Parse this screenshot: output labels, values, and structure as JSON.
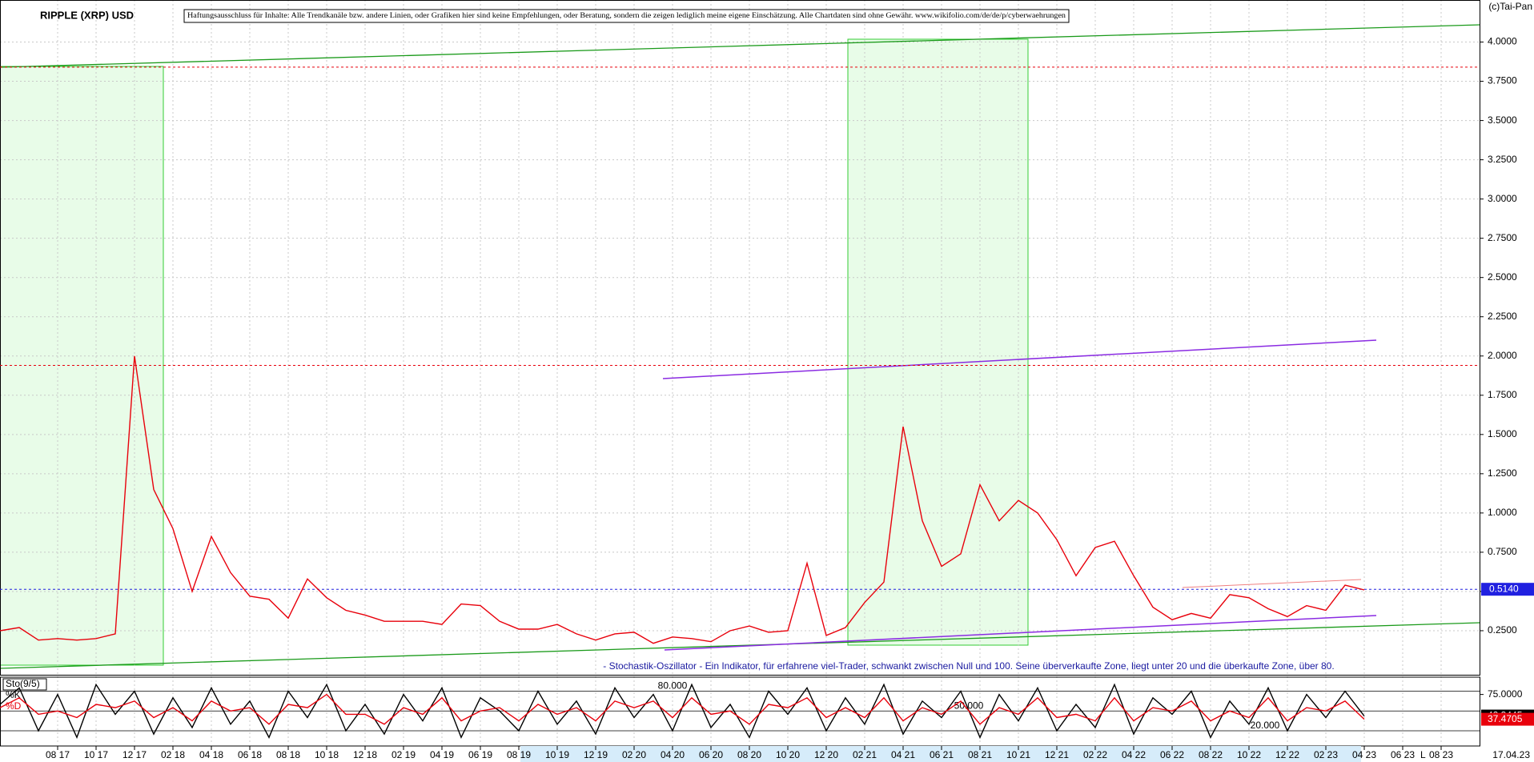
{
  "chart_data": [
    {
      "type": "line",
      "title": "RIPPLE (XRP) USD",
      "copyright": "(c)Tai-Pan",
      "disclaimer": "Haftungsausschluss für Inhalte: Alle Trendkanäle bzw. andere Linien, oder Grafiken hier sind keine Empfehlungen, oder Beratung, sondern die zeigen lediglich meine eigene Einschätzung. Alle Chartdaten sind ohne Gewähr. www.wikifolio.com/de/de/p/cyberwaehrungen",
      "caption": "- Stochastik-Oszillator - Ein Indikator, für erfahrene viel-Trader, schwankt zwischen Null und 100. Seine überverkaufte Zone, liegt unter 20 und die überkaufte Zone, über 80.",
      "last_date": "17.04.23",
      "axis_marker": "L",
      "x": [
        "2017-05",
        "2017-06",
        "2017-07",
        "2017-08",
        "2017-09",
        "2017-10",
        "2017-11",
        "2017-12",
        "2018-01",
        "2018-02",
        "2018-03",
        "2018-04",
        "2018-05",
        "2018-06",
        "2018-07",
        "2018-08",
        "2018-09",
        "2018-10",
        "2018-11",
        "2018-12",
        "2019-01",
        "2019-02",
        "2019-03",
        "2019-04",
        "2019-05",
        "2019-06",
        "2019-07",
        "2019-08",
        "2019-09",
        "2019-10",
        "2019-11",
        "2019-12",
        "2020-01",
        "2020-02",
        "2020-03",
        "2020-04",
        "2020-05",
        "2020-06",
        "2020-07",
        "2020-08",
        "2020-09",
        "2020-10",
        "2020-11",
        "2020-12",
        "2021-01",
        "2021-02",
        "2021-03",
        "2021-04",
        "2021-05",
        "2021-06",
        "2021-07",
        "2021-08",
        "2021-09",
        "2021-10",
        "2021-11",
        "2021-12",
        "2022-01",
        "2022-02",
        "2022-03",
        "2022-04",
        "2022-05",
        "2022-06",
        "2022-07",
        "2022-08",
        "2022-09",
        "2022-10",
        "2022-11",
        "2022-12",
        "2023-01",
        "2023-02",
        "2023-03",
        "2023-04"
      ],
      "series": [
        {
          "color": "#e8000b",
          "values": [
            0.25,
            0.27,
            0.19,
            0.2,
            0.19,
            0.2,
            0.23,
            2.0,
            1.15,
            0.9,
            0.5,
            0.85,
            0.62,
            0.47,
            0.45,
            0.33,
            0.58,
            0.46,
            0.38,
            0.35,
            0.31,
            0.31,
            0.31,
            0.29,
            0.42,
            0.41,
            0.31,
            0.26,
            0.26,
            0.29,
            0.23,
            0.19,
            0.23,
            0.24,
            0.17,
            0.21,
            0.2,
            0.18,
            0.25,
            0.28,
            0.24,
            0.25,
            0.68,
            0.22,
            0.27,
            0.43,
            0.56,
            1.55,
            0.95,
            0.66,
            0.74,
            1.18,
            0.95,
            1.08,
            1.0,
            0.83,
            0.6,
            0.78,
            0.82,
            0.6,
            0.4,
            0.32,
            0.36,
            0.33,
            0.48,
            0.46,
            0.39,
            0.34,
            0.41,
            0.38,
            0.54,
            0.51
          ]
        }
      ],
      "xlim": [
        "2017-05",
        "2023-10"
      ],
      "xticks": [
        {
          "value": "2017-08",
          "label": "08 17"
        },
        {
          "value": "2017-10",
          "label": "10 17"
        },
        {
          "value": "2017-12",
          "label": "12 17"
        },
        {
          "value": "2018-02",
          "label": "02 18"
        },
        {
          "value": "2018-04",
          "label": "04 18"
        },
        {
          "value": "2018-06",
          "label": "06 18"
        },
        {
          "value": "2018-08",
          "label": "08 18"
        },
        {
          "value": "2018-10",
          "label": "10 18"
        },
        {
          "value": "2018-12",
          "label": "12 18"
        },
        {
          "value": "2019-02",
          "label": "02 19"
        },
        {
          "value": "2019-04",
          "label": "04 19"
        },
        {
          "value": "2019-06",
          "label": "06 19"
        },
        {
          "value": "2019-08",
          "label": "08 19"
        },
        {
          "value": "2019-10",
          "label": "10 19"
        },
        {
          "value": "2019-12",
          "label": "12 19"
        },
        {
          "value": "2020-02",
          "label": "02 20"
        },
        {
          "value": "2020-04",
          "label": "04 20"
        },
        {
          "value": "2020-06",
          "label": "06 20"
        },
        {
          "value": "2020-08",
          "label": "08 20"
        },
        {
          "value": "2020-10",
          "label": "10 20"
        },
        {
          "value": "2020-12",
          "label": "12 20"
        },
        {
          "value": "2021-02",
          "label": "02 21"
        },
        {
          "value": "2021-04",
          "label": "04 21"
        },
        {
          "value": "2021-06",
          "label": "06 21"
        },
        {
          "value": "2021-08",
          "label": "08 21"
        },
        {
          "value": "2021-10",
          "label": "10 21"
        },
        {
          "value": "2021-12",
          "label": "12 21"
        },
        {
          "value": "2022-02",
          "label": "02 22"
        },
        {
          "value": "2022-04",
          "label": "04 22"
        },
        {
          "value": "2022-06",
          "label": "06 22"
        },
        {
          "value": "2022-08",
          "label": "08 22"
        },
        {
          "value": "2022-10",
          "label": "10 22"
        },
        {
          "value": "2022-12",
          "label": "12 22"
        },
        {
          "value": "2023-02",
          "label": "02 23"
        },
        {
          "value": "2023-04",
          "label": "04 23"
        },
        {
          "value": "2023-06",
          "label": "06 23"
        },
        {
          "value": "2023-08",
          "label": "08 23"
        }
      ],
      "ylim": [
        0,
        4.25
      ],
      "yticks": [
        {
          "value": 0.25,
          "label": "0.2500"
        },
        {
          "value": 0.5,
          "label": "0.5000"
        },
        {
          "value": 0.75,
          "label": "0.7500"
        },
        {
          "value": 1,
          "label": "1.0000"
        },
        {
          "value": 1.25,
          "label": "1.2500"
        },
        {
          "value": 1.5,
          "label": "1.5000"
        },
        {
          "value": 1.75,
          "label": "1.7500"
        },
        {
          "value": 2,
          "label": "2.0000"
        },
        {
          "value": 2.25,
          "label": "2.2500"
        },
        {
          "value": 2.5,
          "label": "2.5000"
        },
        {
          "value": 2.75,
          "label": "2.7500"
        },
        {
          "value": 3,
          "label": "3.0000"
        },
        {
          "value": 3.25,
          "label": "3.2500"
        },
        {
          "value": 3.5,
          "label": "3.5000"
        },
        {
          "value": 3.75,
          "label": "3.7500"
        },
        {
          "value": 4,
          "label": "4.0000"
        }
      ],
      "grid": true,
      "levels": [
        3.84,
        1.94
      ],
      "current": {
        "value": 0.514,
        "label": "0.5140"
      }
    },
    {
      "type": "line",
      "title": "Sto(9/5)",
      "x": [
        "2017-05",
        "2017-06",
        "2017-07",
        "2017-08",
        "2017-09",
        "2017-10",
        "2017-11",
        "2017-12",
        "2018-01",
        "2018-02",
        "2018-03",
        "2018-04",
        "2018-05",
        "2018-06",
        "2018-07",
        "2018-08",
        "2018-09",
        "2018-10",
        "2018-11",
        "2018-12",
        "2019-01",
        "2019-02",
        "2019-03",
        "2019-04",
        "2019-05",
        "2019-06",
        "2019-07",
        "2019-08",
        "2019-09",
        "2019-10",
        "2019-11",
        "2019-12",
        "2020-01",
        "2020-02",
        "2020-03",
        "2020-04",
        "2020-05",
        "2020-06",
        "2020-07",
        "2020-08",
        "2020-09",
        "2020-10",
        "2020-11",
        "2020-12",
        "2021-01",
        "2021-02",
        "2021-03",
        "2021-04",
        "2021-05",
        "2021-06",
        "2021-07",
        "2021-08",
        "2021-09",
        "2021-10",
        "2021-11",
        "2021-12",
        "2022-01",
        "2022-02",
        "2022-03",
        "2022-04",
        "2022-05",
        "2022-06",
        "2022-07",
        "2022-08",
        "2022-09",
        "2022-10",
        "2022-11",
        "2022-12",
        "2023-01",
        "2023-02",
        "2023-03",
        "2023-04"
      ],
      "series": [
        {
          "name": "%K",
          "color": "#000000",
          "values": [
            60,
            85,
            20,
            75,
            10,
            90,
            45,
            80,
            15,
            70,
            25,
            85,
            30,
            65,
            10,
            80,
            40,
            90,
            20,
            60,
            15,
            75,
            35,
            85,
            10,
            70,
            50,
            20,
            80,
            30,
            65,
            15,
            85,
            40,
            75,
            20,
            90,
            25,
            60,
            10,
            80,
            45,
            85,
            20,
            70,
            30,
            90,
            15,
            65,
            40,
            80,
            10,
            75,
            35,
            85,
            20,
            60,
            25,
            90,
            15,
            70,
            45,
            80,
            10,
            65,
            30,
            85,
            20,
            75,
            40,
            80,
            42.3445
          ]
        },
        {
          "name": "%D",
          "color": "#e8000b",
          "values": [
            55,
            70,
            45,
            50,
            40,
            60,
            55,
            65,
            40,
            55,
            35,
            65,
            50,
            55,
            30,
            60,
            55,
            75,
            45,
            45,
            30,
            55,
            45,
            70,
            35,
            50,
            55,
            35,
            60,
            45,
            55,
            35,
            65,
            55,
            65,
            40,
            70,
            45,
            50,
            30,
            60,
            55,
            70,
            40,
            55,
            40,
            70,
            35,
            55,
            45,
            65,
            30,
            55,
            45,
            70,
            40,
            45,
            35,
            70,
            35,
            55,
            50,
            65,
            35,
            50,
            40,
            70,
            35,
            55,
            50,
            65,
            37.4705
          ]
        }
      ],
      "xlim": [
        "2017-05",
        "2023-10"
      ],
      "ylim": [
        0,
        100
      ],
      "yticks": [
        {
          "value": 75,
          "label": "75.0000"
        }
      ],
      "levels": [
        {
          "value": 80,
          "label": "80.000"
        },
        {
          "value": 50,
          "label": "50.000"
        },
        {
          "value": 20,
          "label": "20.000"
        }
      ]
    }
  ]
}
